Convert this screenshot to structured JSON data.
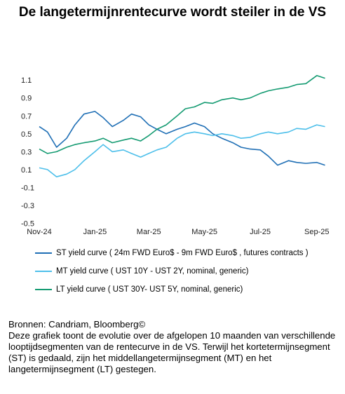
{
  "title": "De langetermijnrentecurve wordt steiler in de VS",
  "chart_data": {
    "type": "line",
    "x_range": [
      "2024-11-01",
      "2025-09-15"
    ],
    "x_tick_labels": [
      {
        "label": "Nov-24",
        "date": "2024-11-01"
      },
      {
        "label": "Jan-25",
        "date": "2025-01-01"
      },
      {
        "label": "Mar-25",
        "date": "2025-03-01"
      },
      {
        "label": "May-25",
        "date": "2025-05-01"
      },
      {
        "label": "Jul-25",
        "date": "2025-07-01"
      },
      {
        "label": "Sep-25",
        "date": "2025-09-01"
      }
    ],
    "y_ticks": [
      "1.1",
      "0.9",
      "0.7",
      "0.5",
      "0.3",
      "0.1",
      "-0.1",
      "-0.3",
      "-0.5"
    ],
    "ylim": [
      -0.55,
      1.25
    ],
    "grid": false,
    "legend_position": "bottom",
    "series": [
      {
        "name": "ST yield curve ( 24m FWD Euro$ - 9m FWD Euro$ , futures contracts )",
        "color": "#1F6FB5",
        "points": [
          [
            "2024-11-01",
            0.58
          ],
          [
            "2024-11-10",
            0.52
          ],
          [
            "2024-11-20",
            0.35
          ],
          [
            "2024-12-01",
            0.45
          ],
          [
            "2024-12-10",
            0.6
          ],
          [
            "2024-12-20",
            0.72
          ],
          [
            "2025-01-01",
            0.75
          ],
          [
            "2025-01-10",
            0.68
          ],
          [
            "2025-01-20",
            0.58
          ],
          [
            "2025-02-01",
            0.65
          ],
          [
            "2025-02-10",
            0.72
          ],
          [
            "2025-02-20",
            0.69
          ],
          [
            "2025-03-01",
            0.6
          ],
          [
            "2025-03-10",
            0.55
          ],
          [
            "2025-03-20",
            0.5
          ],
          [
            "2025-04-01",
            0.55
          ],
          [
            "2025-04-10",
            0.58
          ],
          [
            "2025-04-20",
            0.62
          ],
          [
            "2025-05-01",
            0.58
          ],
          [
            "2025-05-10",
            0.5
          ],
          [
            "2025-05-20",
            0.45
          ],
          [
            "2025-06-01",
            0.4
          ],
          [
            "2025-06-10",
            0.35
          ],
          [
            "2025-06-20",
            0.33
          ],
          [
            "2025-07-01",
            0.32
          ],
          [
            "2025-07-10",
            0.25
          ],
          [
            "2025-07-20",
            0.15
          ],
          [
            "2025-08-01",
            0.2
          ],
          [
            "2025-08-10",
            0.18
          ],
          [
            "2025-08-20",
            0.17
          ],
          [
            "2025-09-01",
            0.18
          ],
          [
            "2025-09-10",
            0.15
          ]
        ]
      },
      {
        "name": "MT yield curve ( UST 10Y - UST 2Y, nominal, generic)",
        "color": "#4DBFEA",
        "points": [
          [
            "2024-11-01",
            0.12
          ],
          [
            "2024-11-10",
            0.1
          ],
          [
            "2024-11-20",
            0.02
          ],
          [
            "2024-12-01",
            0.05
          ],
          [
            "2024-12-10",
            0.1
          ],
          [
            "2024-12-20",
            0.2
          ],
          [
            "2025-01-01",
            0.3
          ],
          [
            "2025-01-10",
            0.38
          ],
          [
            "2025-01-20",
            0.3
          ],
          [
            "2025-02-01",
            0.32
          ],
          [
            "2025-02-10",
            0.28
          ],
          [
            "2025-02-20",
            0.24
          ],
          [
            "2025-03-01",
            0.28
          ],
          [
            "2025-03-10",
            0.32
          ],
          [
            "2025-03-20",
            0.35
          ],
          [
            "2025-04-01",
            0.45
          ],
          [
            "2025-04-10",
            0.5
          ],
          [
            "2025-04-20",
            0.52
          ],
          [
            "2025-05-01",
            0.5
          ],
          [
            "2025-05-10",
            0.48
          ],
          [
            "2025-05-20",
            0.5
          ],
          [
            "2025-06-01",
            0.48
          ],
          [
            "2025-06-10",
            0.45
          ],
          [
            "2025-06-20",
            0.46
          ],
          [
            "2025-07-01",
            0.5
          ],
          [
            "2025-07-10",
            0.52
          ],
          [
            "2025-07-20",
            0.5
          ],
          [
            "2025-08-01",
            0.52
          ],
          [
            "2025-08-10",
            0.56
          ],
          [
            "2025-08-20",
            0.55
          ],
          [
            "2025-09-01",
            0.6
          ],
          [
            "2025-09-10",
            0.58
          ]
        ]
      },
      {
        "name": "LT yield curve ( UST 30Y- UST 5Y, nominal, generic)",
        "color": "#159B72",
        "points": [
          [
            "2024-11-01",
            0.33
          ],
          [
            "2024-11-10",
            0.28
          ],
          [
            "2024-11-20",
            0.3
          ],
          [
            "2024-12-01",
            0.35
          ],
          [
            "2024-12-10",
            0.38
          ],
          [
            "2024-12-20",
            0.4
          ],
          [
            "2025-01-01",
            0.42
          ],
          [
            "2025-01-10",
            0.45
          ],
          [
            "2025-01-20",
            0.4
          ],
          [
            "2025-02-01",
            0.43
          ],
          [
            "2025-02-10",
            0.45
          ],
          [
            "2025-02-20",
            0.42
          ],
          [
            "2025-03-01",
            0.48
          ],
          [
            "2025-03-10",
            0.55
          ],
          [
            "2025-03-20",
            0.6
          ],
          [
            "2025-04-01",
            0.7
          ],
          [
            "2025-04-10",
            0.78
          ],
          [
            "2025-04-20",
            0.8
          ],
          [
            "2025-05-01",
            0.85
          ],
          [
            "2025-05-10",
            0.84
          ],
          [
            "2025-05-20",
            0.88
          ],
          [
            "2025-06-01",
            0.9
          ],
          [
            "2025-06-10",
            0.88
          ],
          [
            "2025-06-20",
            0.9
          ],
          [
            "2025-07-01",
            0.95
          ],
          [
            "2025-07-10",
            0.98
          ],
          [
            "2025-07-20",
            1.0
          ],
          [
            "2025-08-01",
            1.02
          ],
          [
            "2025-08-10",
            1.05
          ],
          [
            "2025-08-20",
            1.06
          ],
          [
            "2025-09-01",
            1.15
          ],
          [
            "2025-09-10",
            1.12
          ]
        ]
      }
    ]
  },
  "source_line": "Bronnen: Candriam, Bloomberg©",
  "description": "Deze grafiek toont de evolutie over de afgelopen 10 maanden van verschillende looptijdsegmenten van de rentecurve in de VS. Terwijl het kortetermijnsegment (ST) is gedaald, zijn het middellangetermijnsegment (MT) en het langetermijnsegment (LT) gestegen."
}
